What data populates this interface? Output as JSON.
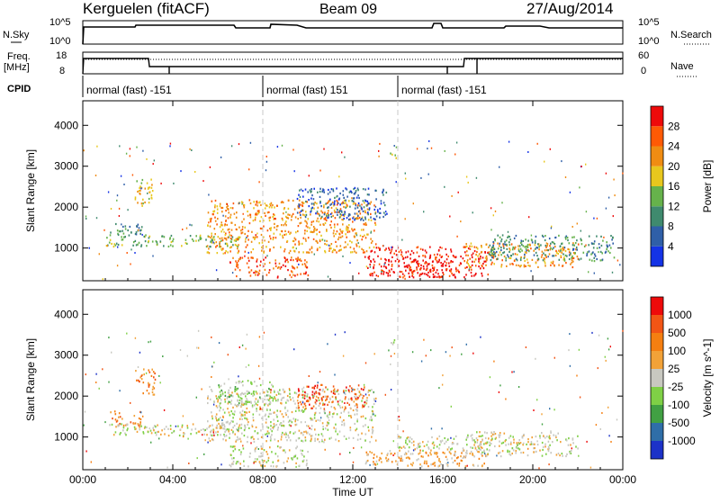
{
  "header": {
    "site": "Kerguelen (fitACF)",
    "beam": "Beam 09",
    "date": "27/Aug/2014"
  },
  "top_strip": {
    "left_label": "N.Sky",
    "left_ticks": [
      "10^5",
      "10^0"
    ],
    "right_label": "N.Search",
    "right_ticks": [
      "10^5",
      "10^0"
    ],
    "freq_label_1": "Freq.",
    "freq_label_2": "[MHz]",
    "freq_ticks": [
      "18",
      "8"
    ],
    "nave_label": "Nave",
    "nave_ticks": [
      "60",
      "0"
    ],
    "cpid_label": "CPID"
  },
  "cpid_segments": [
    {
      "label": "normal (fast) -151",
      "start_h": 0,
      "end_h": 8.0
    },
    {
      "label": "normal (fast) 151",
      "start_h": 8.0,
      "end_h": 14.0
    },
    {
      "label": "normal (fast) -151",
      "start_h": 14.0,
      "end_h": 24.0
    }
  ],
  "chart_data": [
    {
      "type": "heatmap",
      "title": "",
      "xlabel": "Time UT",
      "ylabel": "Slant Range [km]",
      "xlim_hours": [
        0,
        24
      ],
      "ylim_km": [
        200,
        4600
      ],
      "x_ticks": [
        "00:00",
        "04:00",
        "08:00",
        "12:00",
        "16:00",
        "20:00",
        "00:00"
      ],
      "y_ticks": [
        1000,
        2000,
        3000,
        4000
      ],
      "colorbar": {
        "label": "Power [dB]",
        "ticks": [
          "4",
          "8",
          "12",
          "16",
          "20",
          "24",
          "28"
        ],
        "colors": [
          "#1433e6",
          "#2f5fa8",
          "#3f8a6e",
          "#66b24b",
          "#e8c71d",
          "#f08c12",
          "#ff5a05",
          "#ee0a0a"
        ]
      },
      "echo_regions": [
        {
          "t0": 1.2,
          "t1": 2.6,
          "r0": 1300,
          "r1": 1650,
          "level": 2
        },
        {
          "t0": 2.3,
          "t1": 3.2,
          "r0": 2050,
          "r1": 2700,
          "level": 4
        },
        {
          "t0": 1.0,
          "t1": 7.0,
          "r0": 1050,
          "r1": 1350,
          "level": 3
        },
        {
          "t0": 5.5,
          "t1": 13.0,
          "r0": 900,
          "r1": 2200,
          "level": 5
        },
        {
          "t0": 6.5,
          "t1": 10.0,
          "r0": 300,
          "r1": 800,
          "level": 6
        },
        {
          "t0": 9.5,
          "t1": 13.5,
          "r0": 1700,
          "r1": 2500,
          "level": 1
        },
        {
          "t0": 12.5,
          "t1": 18.0,
          "r0": 300,
          "r1": 1050,
          "level": 7
        },
        {
          "t0": 14.0,
          "t1": 16.0,
          "r0": 300,
          "r1": 900,
          "level": 7
        },
        {
          "t0": 17.0,
          "t1": 22.0,
          "r0": 550,
          "r1": 1150,
          "level": 5
        },
        {
          "t0": 18.0,
          "t1": 23.6,
          "r0": 700,
          "r1": 1350,
          "level": 2
        },
        {
          "t0": 13.6,
          "t1": 13.9,
          "r0": 3200,
          "r1": 3400,
          "level": 3
        }
      ]
    },
    {
      "type": "heatmap",
      "title": "",
      "xlabel": "Time UT",
      "ylabel": "Slant Range [km]",
      "xlim_hours": [
        0,
        24
      ],
      "ylim_km": [
        200,
        4600
      ],
      "x_ticks": [
        "00:00",
        "04:00",
        "08:00",
        "12:00",
        "16:00",
        "20:00",
        "00:00"
      ],
      "y_ticks": [
        1000,
        2000,
        3000,
        4000
      ],
      "colorbar": {
        "label": "Velocity [m s^-1]",
        "ticks": [
          "1000",
          "500",
          "100",
          "25",
          "-25",
          "-100",
          "-500",
          "-1000"
        ],
        "colors": [
          "#1c32c8",
          "#2f6ea8",
          "#41a043",
          "#7fd046",
          "#c8c8c0",
          "#f2a238",
          "#f57f11",
          "#f25515",
          "#ee0a0a"
        ]
      },
      "echo_regions": [
        {
          "t0": 1.2,
          "t1": 2.6,
          "r0": 1300,
          "r1": 1650,
          "level": 6
        },
        {
          "t0": 2.3,
          "t1": 3.2,
          "r0": 2050,
          "r1": 2700,
          "level": 6
        },
        {
          "t0": 1.0,
          "t1": 7.0,
          "r0": 1050,
          "r1": 1350,
          "level": 4
        },
        {
          "t0": 5.5,
          "t1": 13.0,
          "r0": 900,
          "r1": 2200,
          "level": 4
        },
        {
          "t0": 6.5,
          "t1": 10.0,
          "r0": 300,
          "r1": 800,
          "level": 4
        },
        {
          "t0": 9.5,
          "t1": 12.5,
          "r0": 1700,
          "r1": 2300,
          "level": 7
        },
        {
          "t0": 12.5,
          "t1": 18.0,
          "r0": 300,
          "r1": 700,
          "level": 5
        },
        {
          "t0": 14.0,
          "t1": 18.0,
          "r0": 600,
          "r1": 1050,
          "level": 4
        },
        {
          "t0": 17.0,
          "t1": 22.0,
          "r0": 550,
          "r1": 1150,
          "level": 4
        },
        {
          "t0": 13.6,
          "t1": 13.9,
          "r0": 3200,
          "r1": 3400,
          "level": 3
        },
        {
          "t0": 6.0,
          "t1": 8.5,
          "r0": 1800,
          "r1": 2400,
          "level": 3
        }
      ]
    }
  ]
}
